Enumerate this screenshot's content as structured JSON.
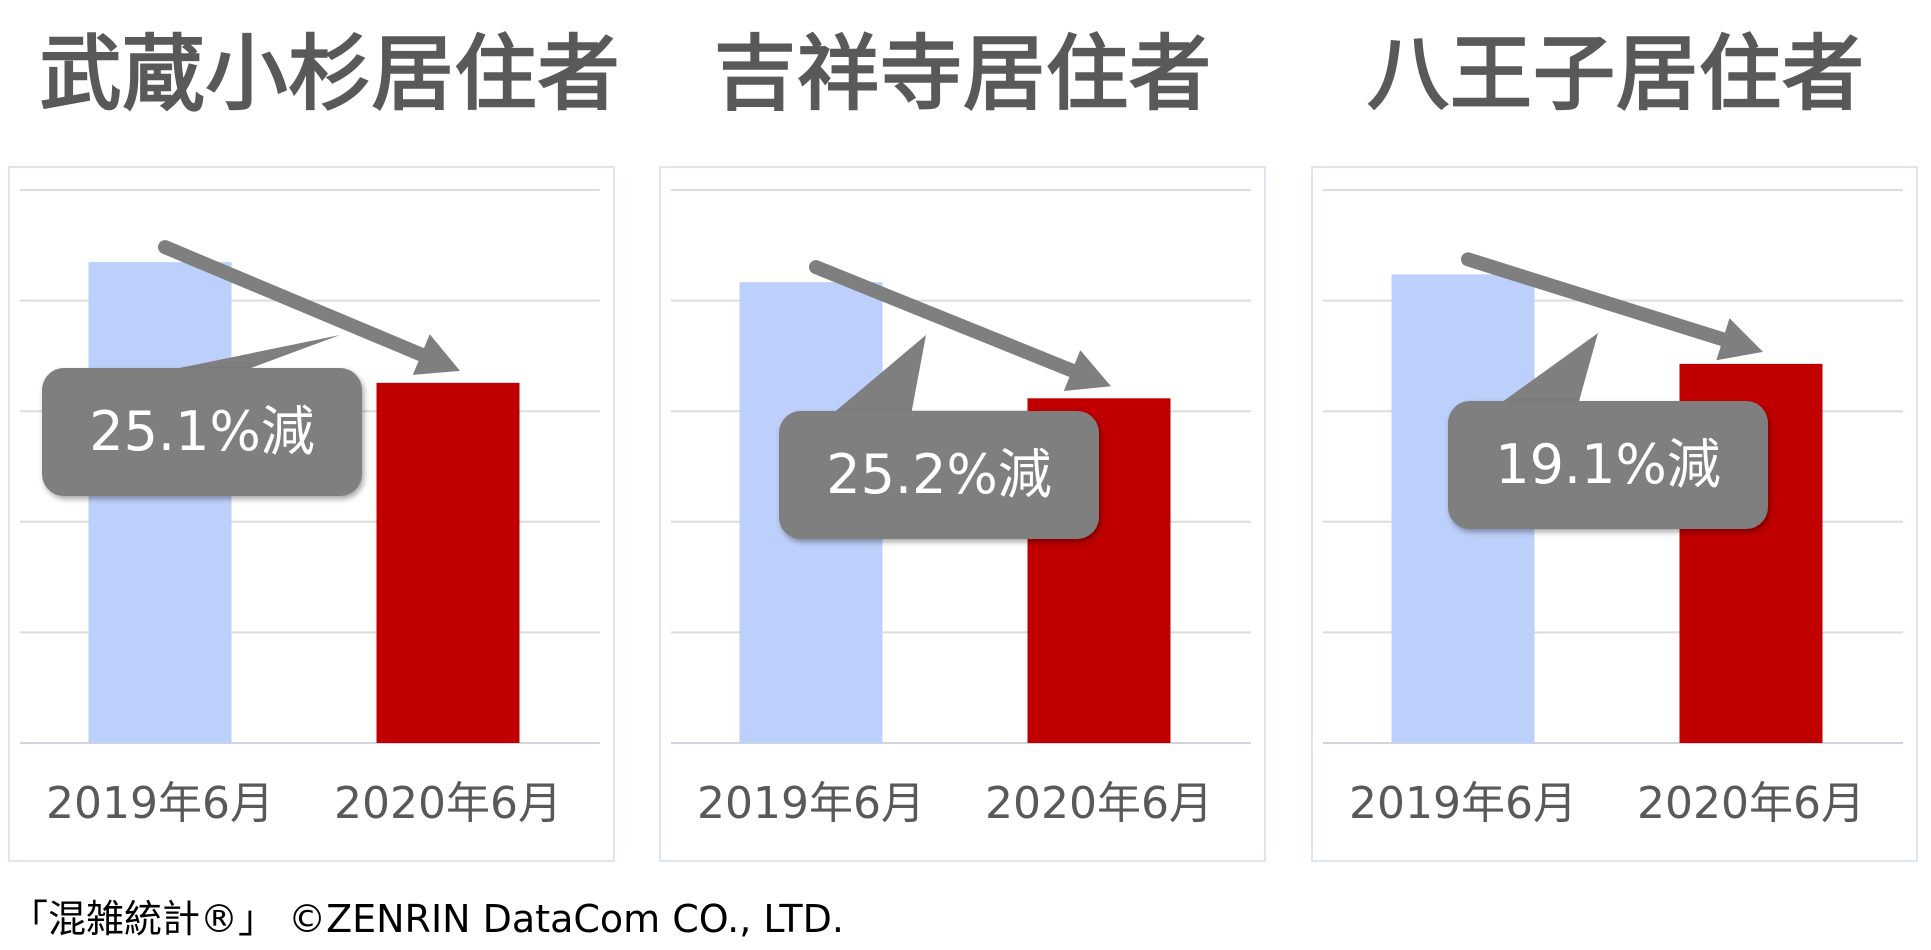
{
  "chart_data": [
    {
      "type": "bar",
      "title": "武蔵小杉居住者",
      "categories": [
        "2019年6月",
        "2020年6月"
      ],
      "values": [
        100,
        74.9
      ],
      "annotation": "25.1%減",
      "ylim": [
        0,
        115
      ],
      "grid": true,
      "colors": [
        "#bdd0fb",
        "#c00000"
      ]
    },
    {
      "type": "bar",
      "title": "吉祥寺居住者",
      "categories": [
        "2019年6月",
        "2020年6月"
      ],
      "values": [
        100,
        74.8
      ],
      "annotation": "25.2%減",
      "ylim": [
        0,
        120
      ],
      "grid": true,
      "colors": [
        "#bdd0fb",
        "#c00000"
      ]
    },
    {
      "type": "bar",
      "title": "八王子居住者",
      "categories": [
        "2019年6月",
        "2020年6月"
      ],
      "values": [
        100,
        80.9
      ],
      "annotation": "19.1%減",
      "ylim": [
        0,
        118
      ],
      "grid": true,
      "colors": [
        "#bdd0fb",
        "#c00000"
      ]
    }
  ],
  "footer": {
    "source": "「混雑統計®」 ©ZENRIN DataCom CO., LTD."
  }
}
